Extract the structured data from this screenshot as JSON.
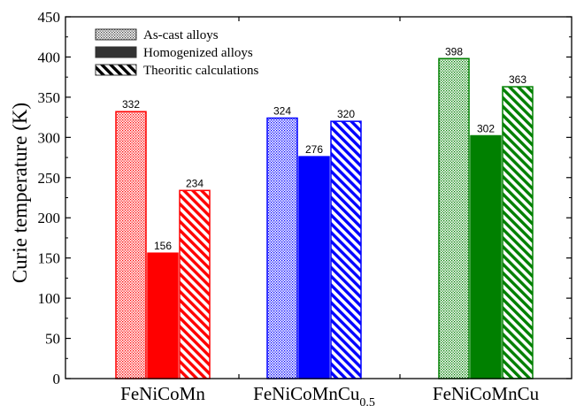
{
  "chart_data": {
    "type": "bar",
    "categories": [
      "FeNiCoMn",
      "FeNiCoMnCu",
      "FeNiCoMnCu"
    ],
    "category_subscripts": [
      "",
      "0.5",
      ""
    ],
    "category_colors": [
      "#ff0000",
      "#0000ff",
      "#008000"
    ],
    "series": [
      {
        "name": "As-cast alloys",
        "pattern": "dotted",
        "values": [
          332,
          324,
          398
        ]
      },
      {
        "name": "Homogenized alloys",
        "pattern": "solid",
        "values": [
          156,
          276,
          302
        ]
      },
      {
        "name": "Theoritic calculations",
        "pattern": "hatched",
        "values": [
          234,
          320,
          363
        ]
      }
    ],
    "ylabel": "Curie temperature (K)",
    "ylim": [
      0,
      450
    ],
    "yticks": [
      0,
      50,
      100,
      150,
      200,
      250,
      300,
      350,
      400,
      450
    ],
    "data_labels": true,
    "legend": "top-left",
    "grid": false
  }
}
